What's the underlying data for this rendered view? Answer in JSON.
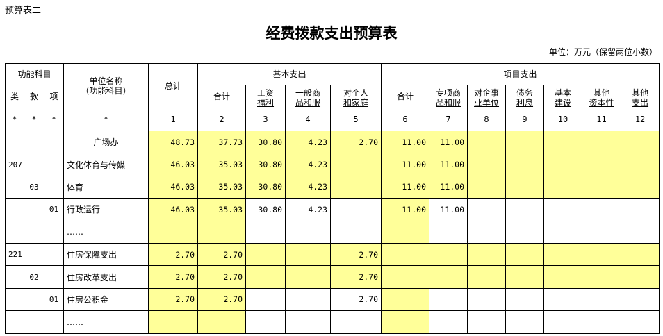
{
  "corner_label": "预算表二",
  "title": "经费拨款支出预算表",
  "unit": "单位：万元（保留两位小数）",
  "highlight_color": "#ffff99",
  "header": {
    "func_subject": "功能科目",
    "lei": "类",
    "kuan": "款",
    "xiang": "项",
    "unit_name": "单位名称",
    "unit_name_sub": "（功能科目）",
    "total": "总计",
    "basic": "基本支出",
    "project": "项目支出",
    "basic_cols": [
      [
        "合计",
        ""
      ],
      [
        "工资",
        "福利"
      ],
      [
        "一般商",
        "品和服"
      ],
      [
        "对个人",
        "和家庭"
      ]
    ],
    "project_cols": [
      [
        "合计",
        ""
      ],
      [
        "专项商",
        "品和服"
      ],
      [
        "对企事",
        "业单位"
      ],
      [
        "债务",
        "利息"
      ],
      [
        "基本",
        "建设"
      ],
      [
        "其他",
        "资本性"
      ],
      [
        "其他",
        "支出"
      ]
    ],
    "index_row": [
      "*",
      "*",
      "*",
      "*",
      "1",
      "2",
      "3",
      "4",
      "5",
      "6",
      "7",
      "8",
      "9",
      "10",
      "11",
      "12"
    ]
  },
  "rows": [
    {
      "lei": "",
      "kuan": "",
      "xiang": "",
      "name": "广场办",
      "center": true,
      "highlight": "all",
      "values": [
        "48.73",
        "37.73",
        "30.80",
        "4.23",
        "2.70",
        "11.00",
        "11.00",
        "",
        "",
        "",
        "",
        ""
      ]
    },
    {
      "lei": "207",
      "kuan": "",
      "xiang": "",
      "name": "文化体育与传媒",
      "highlight": "all",
      "values": [
        "46.03",
        "35.03",
        "30.80",
        "4.23",
        "",
        "11.00",
        "11.00",
        "",
        "",
        "",
        "",
        ""
      ]
    },
    {
      "lei": "",
      "kuan": "03",
      "xiang": "",
      "name": "体育",
      "highlight": "all",
      "values": [
        "46.03",
        "35.03",
        "30.80",
        "4.23",
        "",
        "11.00",
        "11.00",
        "",
        "",
        "",
        "",
        ""
      ]
    },
    {
      "lei": "",
      "kuan": "",
      "xiang": "01",
      "name": "行政运行",
      "highlight": "totals",
      "values": [
        "46.03",
        "35.03",
        "30.80",
        "4.23",
        "",
        "11.00",
        "11.00",
        "",
        "",
        "",
        "",
        ""
      ]
    },
    {
      "lei": "",
      "kuan": "",
      "xiang": "",
      "name": "……",
      "highlight": "totals",
      "values": [
        "",
        "",
        "",
        "",
        "",
        "",
        "",
        "",
        "",
        "",
        "",
        ""
      ]
    },
    {
      "lei": "221",
      "kuan": "",
      "xiang": "",
      "name": "住房保障支出",
      "highlight": "all",
      "values": [
        "2.70",
        "2.70",
        "",
        "",
        "2.70",
        "",
        "",
        "",
        "",
        "",
        "",
        ""
      ]
    },
    {
      "lei": "",
      "kuan": "02",
      "xiang": "",
      "name": "住房改革支出",
      "highlight": "all",
      "values": [
        "2.70",
        "2.70",
        "",
        "",
        "2.70",
        "",
        "",
        "",
        "",
        "",
        "",
        ""
      ]
    },
    {
      "lei": "",
      "kuan": "",
      "xiang": "01",
      "name": "住房公积金",
      "highlight": "totals",
      "values": [
        "2.70",
        "2.70",
        "",
        "",
        "2.70",
        "",
        "",
        "",
        "",
        "",
        "",
        ""
      ]
    },
    {
      "lei": "",
      "kuan": "",
      "xiang": "",
      "name": "……",
      "highlight": "totals",
      "values": [
        "",
        "",
        "",
        "",
        "",
        "",
        "",
        "",
        "",
        "",
        "",
        ""
      ]
    }
  ]
}
